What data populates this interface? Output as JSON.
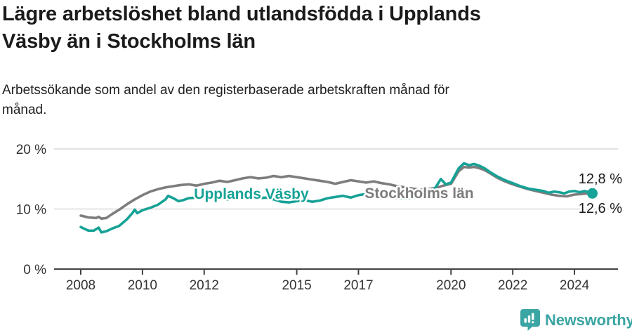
{
  "header": {
    "title": "Lägre arbetslöshet bland utlandsfödda i Upplands\nVäsby än i Stockholms län",
    "subtitle": "Arbetssökande som andel av den registerbaserade arbetskraften månad för\nmånad."
  },
  "chart_data": {
    "type": "line",
    "unit": "%",
    "grid": "horizontal-only",
    "x_axis": {
      "ticks": [
        {
          "value": 2008,
          "label": "2008"
        },
        {
          "value": 2010,
          "label": "2010"
        },
        {
          "value": 2012,
          "label": "2012"
        },
        {
          "value": 2015,
          "label": "2015"
        },
        {
          "value": 2017,
          "label": "2017"
        },
        {
          "value": 2020,
          "label": "2020"
        },
        {
          "value": 2022,
          "label": "2022"
        },
        {
          "value": 2024,
          "label": "2024"
        }
      ],
      "range": [
        2007.15,
        2025.4
      ]
    },
    "y_axis": {
      "ticks": [
        {
          "value": 0,
          "label": "0 %"
        },
        {
          "value": 10,
          "label": "10 %"
        },
        {
          "value": 20,
          "label": "20 %"
        }
      ],
      "range": [
        0,
        22.3
      ]
    },
    "series": [
      {
        "name": "Stockholms län",
        "color": "#7D7D7D",
        "end_value_label": "12,8 %",
        "end_value": 12.8,
        "points": [
          [
            2008.0,
            8.9
          ],
          [
            2008.25,
            8.6
          ],
          [
            2008.5,
            8.5
          ],
          [
            2008.58,
            8.7
          ],
          [
            2008.67,
            8.4
          ],
          [
            2008.83,
            8.5
          ],
          [
            2009.0,
            9.1
          ],
          [
            2009.25,
            9.9
          ],
          [
            2009.5,
            10.8
          ],
          [
            2009.75,
            11.6
          ],
          [
            2010.0,
            12.3
          ],
          [
            2010.25,
            12.9
          ],
          [
            2010.5,
            13.3
          ],
          [
            2010.75,
            13.6
          ],
          [
            2011.0,
            13.8
          ],
          [
            2011.25,
            14.0
          ],
          [
            2011.5,
            14.1
          ],
          [
            2011.75,
            13.9
          ],
          [
            2012.0,
            14.2
          ],
          [
            2012.25,
            14.4
          ],
          [
            2012.5,
            14.7
          ],
          [
            2012.75,
            14.5
          ],
          [
            2013.0,
            14.8
          ],
          [
            2013.25,
            15.1
          ],
          [
            2013.5,
            15.3
          ],
          [
            2013.75,
            15.1
          ],
          [
            2014.0,
            15.2
          ],
          [
            2014.25,
            15.5
          ],
          [
            2014.5,
            15.3
          ],
          [
            2014.75,
            15.5
          ],
          [
            2015.0,
            15.3
          ],
          [
            2015.25,
            15.1
          ],
          [
            2015.5,
            14.9
          ],
          [
            2015.75,
            14.7
          ],
          [
            2016.0,
            14.5
          ],
          [
            2016.25,
            14.2
          ],
          [
            2016.5,
            14.5
          ],
          [
            2016.75,
            14.8
          ],
          [
            2017.0,
            14.6
          ],
          [
            2017.25,
            14.4
          ],
          [
            2017.5,
            14.6
          ],
          [
            2017.75,
            14.3
          ],
          [
            2018.0,
            14.1
          ],
          [
            2018.25,
            13.8
          ],
          [
            2018.5,
            13.6
          ],
          [
            2018.75,
            13.4
          ],
          [
            2019.0,
            13.2
          ],
          [
            2019.25,
            13.3
          ],
          [
            2019.5,
            13.5
          ],
          [
            2019.75,
            13.9
          ],
          [
            2020.0,
            14.2
          ],
          [
            2020.25,
            16.3
          ],
          [
            2020.42,
            17.0
          ],
          [
            2020.58,
            16.9
          ],
          [
            2020.75,
            17.0
          ],
          [
            2020.92,
            16.8
          ],
          [
            2021.08,
            16.5
          ],
          [
            2021.25,
            16.0
          ],
          [
            2021.5,
            15.2
          ],
          [
            2021.75,
            14.6
          ],
          [
            2022.0,
            14.1
          ],
          [
            2022.25,
            13.7
          ],
          [
            2022.5,
            13.3
          ],
          [
            2022.75,
            13.0
          ],
          [
            2023.0,
            12.7
          ],
          [
            2023.25,
            12.4
          ],
          [
            2023.5,
            12.2
          ],
          [
            2023.75,
            12.1
          ],
          [
            2024.0,
            12.4
          ],
          [
            2024.25,
            12.5
          ],
          [
            2024.42,
            12.6
          ],
          [
            2024.58,
            12.8
          ]
        ]
      },
      {
        "name": "Upplands Väsby",
        "color": "#16A296",
        "end_value_label": "12,6 %",
        "end_value": 12.6,
        "points": [
          [
            2008.0,
            7.0
          ],
          [
            2008.08,
            6.8
          ],
          [
            2008.25,
            6.4
          ],
          [
            2008.42,
            6.4
          ],
          [
            2008.58,
            6.9
          ],
          [
            2008.67,
            6.1
          ],
          [
            2008.83,
            6.3
          ],
          [
            2009.0,
            6.7
          ],
          [
            2009.25,
            7.2
          ],
          [
            2009.5,
            8.3
          ],
          [
            2009.67,
            9.3
          ],
          [
            2009.75,
            9.9
          ],
          [
            2009.83,
            9.3
          ],
          [
            2010.0,
            9.8
          ],
          [
            2010.25,
            10.2
          ],
          [
            2010.5,
            10.7
          ],
          [
            2010.75,
            11.6
          ],
          [
            2010.83,
            12.2
          ],
          [
            2011.0,
            11.8
          ],
          [
            2011.17,
            11.3
          ],
          [
            2011.33,
            11.5
          ],
          [
            2011.5,
            11.8
          ],
          [
            2011.75,
            11.9
          ],
          [
            2012.0,
            12.1
          ],
          [
            2012.25,
            12.4
          ],
          [
            2012.5,
            11.9
          ],
          [
            2012.75,
            11.6
          ],
          [
            2013.0,
            11.8
          ],
          [
            2013.25,
            11.9
          ],
          [
            2013.5,
            11.7
          ],
          [
            2013.75,
            11.8
          ],
          [
            2014.0,
            11.9
          ],
          [
            2014.25,
            11.6
          ],
          [
            2014.5,
            11.2
          ],
          [
            2014.75,
            11.1
          ],
          [
            2015.0,
            11.3
          ],
          [
            2015.25,
            11.5
          ],
          [
            2015.5,
            11.2
          ],
          [
            2015.75,
            11.4
          ],
          [
            2016.0,
            11.8
          ],
          [
            2016.25,
            12.0
          ],
          [
            2016.5,
            12.2
          ],
          [
            2016.75,
            11.9
          ],
          [
            2017.0,
            12.3
          ],
          [
            2017.25,
            12.5
          ],
          [
            2017.5,
            12.3
          ],
          [
            2017.75,
            12.2
          ],
          [
            2018.0,
            12.0
          ],
          [
            2018.25,
            11.8
          ],
          [
            2018.5,
            11.7
          ],
          [
            2018.75,
            11.8
          ],
          [
            2019.0,
            12.0
          ],
          [
            2019.25,
            12.4
          ],
          [
            2019.5,
            13.6
          ],
          [
            2019.67,
            15.0
          ],
          [
            2019.83,
            14.1
          ],
          [
            2020.0,
            14.4
          ],
          [
            2020.25,
            16.8
          ],
          [
            2020.42,
            17.6
          ],
          [
            2020.58,
            17.3
          ],
          [
            2020.75,
            17.5
          ],
          [
            2020.92,
            17.2
          ],
          [
            2021.08,
            16.8
          ],
          [
            2021.25,
            16.2
          ],
          [
            2021.5,
            15.4
          ],
          [
            2021.75,
            14.8
          ],
          [
            2022.0,
            14.3
          ],
          [
            2022.25,
            13.8
          ],
          [
            2022.5,
            13.4
          ],
          [
            2022.75,
            13.2
          ],
          [
            2023.0,
            13.0
          ],
          [
            2023.17,
            12.7
          ],
          [
            2023.33,
            12.9
          ],
          [
            2023.5,
            12.8
          ],
          [
            2023.67,
            12.6
          ],
          [
            2023.83,
            12.9
          ],
          [
            2024.0,
            13.0
          ],
          [
            2024.17,
            12.8
          ],
          [
            2024.33,
            13.0
          ],
          [
            2024.58,
            12.6
          ]
        ]
      }
    ]
  },
  "footer": {
    "brand_name": "Newsworthy",
    "brand_color": "#3BA5A3"
  }
}
